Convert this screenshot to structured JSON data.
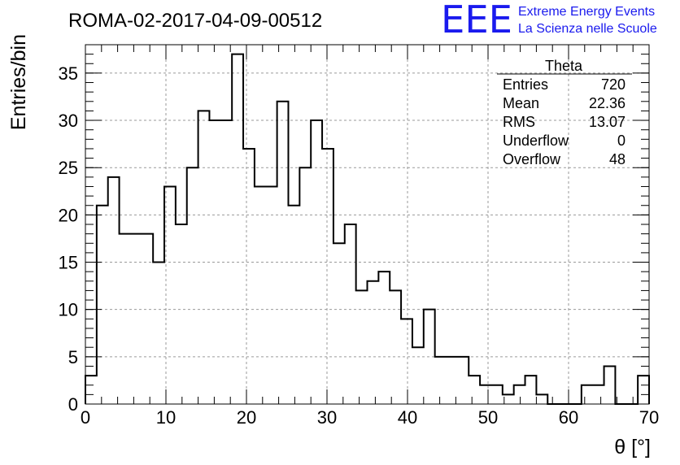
{
  "chart_data": {
    "type": "bar",
    "title": "ROMA-02-2017-04-09-00512",
    "xlabel": "θ [°]",
    "ylabel": "Entries/bin",
    "xlim": [
      0,
      70
    ],
    "ylim": [
      0,
      38
    ],
    "x_ticks": [
      0,
      10,
      20,
      30,
      40,
      50,
      60,
      70
    ],
    "y_ticks": [
      0,
      5,
      10,
      15,
      20,
      25,
      30,
      35
    ],
    "grid": true,
    "bin_width": 1.4,
    "values": [
      3,
      21,
      24,
      18,
      18,
      18,
      15,
      23,
      19,
      25,
      31,
      30,
      30,
      37,
      27,
      23,
      23,
      32,
      21,
      25,
      30,
      27,
      17,
      19,
      12,
      13,
      14,
      12,
      9,
      6,
      10,
      5,
      5,
      5,
      3,
      2,
      2,
      1,
      2,
      3,
      1,
      0,
      0,
      0,
      2,
      2,
      4,
      0,
      0,
      3
    ]
  },
  "logo": {
    "mark": "EEE",
    "line1": "Extreme Energy Events",
    "line2": "La Scienza nelle Scuole"
  },
  "stats": {
    "title": "Theta",
    "rows": [
      {
        "label": "Entries",
        "value": "720"
      },
      {
        "label": "Mean",
        "value": "22.36"
      },
      {
        "label": "RMS",
        "value": "13.07"
      },
      {
        "label": "Underflow",
        "value": "0"
      },
      {
        "label": "Overflow",
        "value": "48"
      }
    ]
  },
  "colors": {
    "logo": "#1a1aee",
    "line": "#000000",
    "grid": "#9a9a9a"
  }
}
